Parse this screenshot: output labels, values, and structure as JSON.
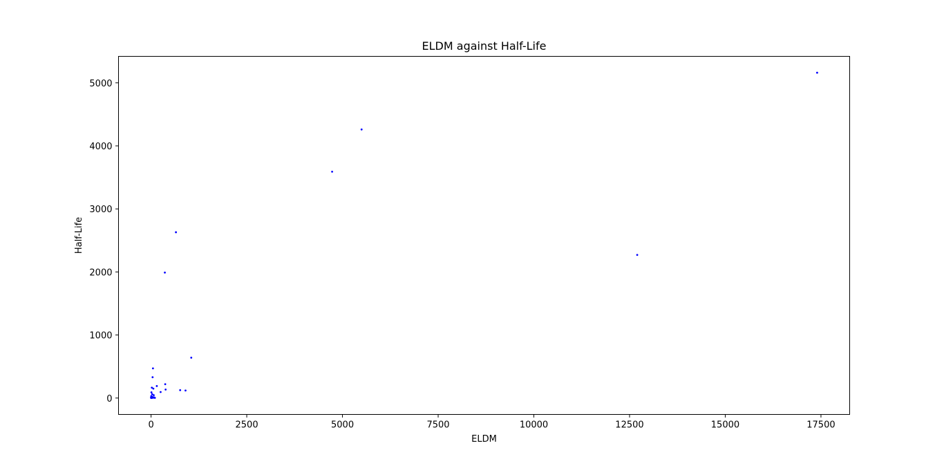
{
  "chart_data": {
    "type": "scatter",
    "title": "ELDM against Half-Life",
    "xlabel": "ELDM",
    "ylabel": "Half-Life",
    "xlim": [
      -850,
      18250
    ],
    "ylim": [
      -260,
      5420
    ],
    "xticks": [
      0,
      2500,
      5000,
      7500,
      10000,
      12500,
      15000,
      17500
    ],
    "yticks": [
      0,
      1000,
      2000,
      3000,
      4000,
      5000
    ],
    "grid": false,
    "legend": "none",
    "marker_color": "#0000ff",
    "points": [
      {
        "x": 17400,
        "y": 5160
      },
      {
        "x": 5500,
        "y": 4260
      },
      {
        "x": 4730,
        "y": 3590
      },
      {
        "x": 650,
        "y": 2630
      },
      {
        "x": 12700,
        "y": 2270
      },
      {
        "x": 360,
        "y": 1990
      },
      {
        "x": 1050,
        "y": 640
      },
      {
        "x": 50,
        "y": 470
      },
      {
        "x": 40,
        "y": 330
      },
      {
        "x": 370,
        "y": 220
      },
      {
        "x": 150,
        "y": 190
      },
      {
        "x": 20,
        "y": 165
      },
      {
        "x": 60,
        "y": 150
      },
      {
        "x": 380,
        "y": 135
      },
      {
        "x": 760,
        "y": 125
      },
      {
        "x": 900,
        "y": 120
      },
      {
        "x": 250,
        "y": 95
      },
      {
        "x": 10,
        "y": 90
      },
      {
        "x": 30,
        "y": 60
      },
      {
        "x": 70,
        "y": 45
      },
      {
        "x": 5,
        "y": 30
      },
      {
        "x": 15,
        "y": 20
      },
      {
        "x": 40,
        "y": 15
      },
      {
        "x": 80,
        "y": 10
      },
      {
        "x": 0,
        "y": 8
      },
      {
        "x": 25,
        "y": 5
      },
      {
        "x": 55,
        "y": 4
      },
      {
        "x": 100,
        "y": 3
      },
      {
        "x": 2,
        "y": 2
      },
      {
        "x": 12,
        "y": 1
      }
    ]
  }
}
